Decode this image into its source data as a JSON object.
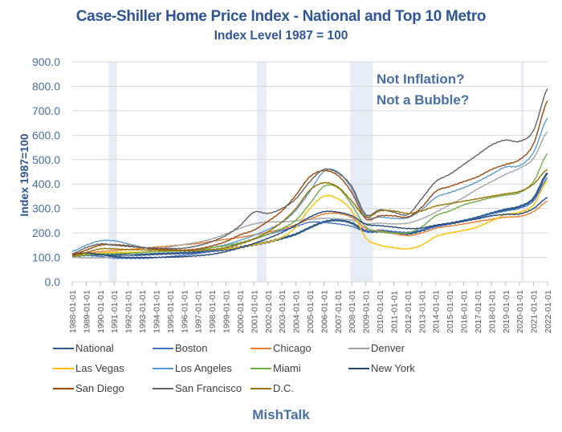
{
  "chart_data": {
    "type": "line",
    "title": "Case-Shiller Home Price Index - National and Top 10 Metro",
    "subtitle": "Index Level 1987 = 100",
    "xlabel": "",
    "ylabel": "Index 1987=100",
    "ylim": [
      0,
      900
    ],
    "yticks": [
      "0.0",
      "100.0",
      "200.0",
      "300.0",
      "400.0",
      "500.0",
      "600.0",
      "700.0",
      "800.0",
      "900.0"
    ],
    "grid": true,
    "legend_position": "bottom",
    "annotation": [
      "Not Inflation?",
      "Not a Bubble?"
    ],
    "source": "MishTalk",
    "x": [
      "1988-01-01",
      "1989-01-01",
      "1990-01-01",
      "1991-01-01",
      "1992-01-01",
      "1993-01-01",
      "1994-01-01",
      "1995-01-01",
      "1996-01-01",
      "1997-01-01",
      "1998-01-01",
      "1999-01-01",
      "2000-01-01",
      "2001-01-01",
      "2002-01-01",
      "2003-01-01",
      "2004-01-01",
      "2005-01-01",
      "2006-01-01",
      "2007-01-01",
      "2008-01-01",
      "2009-01-01",
      "2010-01-01",
      "2011-01-01",
      "2012-01-01",
      "2013-01-01",
      "2014-01-01",
      "2015-01-01",
      "2016-01-01",
      "2017-01-01",
      "2018-01-01",
      "2019-01-01",
      "2020-01-01",
      "2021-01-01",
      "2022-01-01"
    ],
    "recessions": [
      [
        1990.6,
        1991.2
      ],
      [
        2001.2,
        2001.9
      ],
      [
        2007.9,
        2009.5
      ],
      [
        2020.1,
        2020.3
      ]
    ],
    "series": [
      {
        "name": "National",
        "color": "#2E5C8A",
        "width": 2.6,
        "values": [
          105,
          110,
          112,
          110,
          110,
          111,
          114,
          116,
          118,
          121,
          126,
          133,
          142,
          152,
          163,
          178,
          195,
          222,
          245,
          252,
          240,
          208,
          206,
          200,
          197,
          210,
          228,
          238,
          250,
          264,
          281,
          296,
          308,
          342,
          445
        ]
      },
      {
        "name": "Boston",
        "color": "#4472C4",
        "width": 1.4,
        "values": [
          110,
          108,
          104,
          97,
          96,
          96,
          99,
          104,
          109,
          116,
          126,
          140,
          159,
          176,
          194,
          210,
          226,
          244,
          243,
          237,
          227,
          206,
          212,
          206,
          203,
          212,
          225,
          236,
          250,
          262,
          278,
          290,
          301,
          331,
          425
        ]
      },
      {
        "name": "Chicago",
        "color": "#ED7D31",
        "width": 1.4,
        "values": [
          108,
          117,
          124,
          128,
          132,
          137,
          142,
          147,
          152,
          157,
          166,
          174,
          182,
          192,
          203,
          216,
          234,
          257,
          277,
          280,
          263,
          218,
          208,
          198,
          189,
          200,
          219,
          228,
          237,
          247,
          256,
          264,
          268,
          287,
          330
        ]
      },
      {
        "name": "Denver",
        "color": "#A5A5A5",
        "width": 1.4,
        "values": [
          100,
          98,
          98,
          102,
          110,
          120,
          133,
          143,
          153,
          162,
          176,
          196,
          219,
          237,
          245,
          245,
          250,
          255,
          260,
          258,
          252,
          238,
          240,
          237,
          240,
          258,
          285,
          315,
          345,
          380,
          410,
          440,
          465,
          505,
          615
        ]
      },
      {
        "name": "Las Vegas",
        "color": "#FFC000",
        "width": 1.4,
        "values": [
          105,
          111,
          118,
          120,
          121,
          122,
          124,
          126,
          128,
          131,
          133,
          135,
          142,
          152,
          163,
          182,
          224,
          300,
          350,
          340,
          290,
          180,
          150,
          140,
          135,
          150,
          185,
          200,
          210,
          225,
          250,
          275,
          285,
          315,
          415
        ]
      },
      {
        "name": "Los Angeles",
        "color": "#5B9BD5",
        "width": 1.4,
        "values": [
          125,
          150,
          168,
          168,
          155,
          142,
          132,
          128,
          126,
          130,
          140,
          152,
          170,
          190,
          214,
          243,
          293,
          370,
          452,
          450,
          380,
          268,
          265,
          260,
          262,
          295,
          345,
          365,
          385,
          410,
          440,
          470,
          475,
          530,
          670
        ]
      },
      {
        "name": "Miami",
        "color": "#70AD47",
        "width": 1.4,
        "values": [
          105,
          110,
          114,
          115,
          117,
          120,
          123,
          125,
          128,
          133,
          140,
          148,
          160,
          175,
          195,
          218,
          252,
          320,
          390,
          385,
          315,
          225,
          205,
          200,
          200,
          225,
          270,
          290,
          315,
          330,
          345,
          355,
          365,
          410,
          525
        ]
      },
      {
        "name": "New York",
        "color": "#264478",
        "width": 1.4,
        "values": [
          115,
          118,
          112,
          103,
          100,
          100,
          100,
          101,
          103,
          107,
          113,
          124,
          139,
          157,
          178,
          202,
          232,
          265,
          287,
          285,
          270,
          236,
          230,
          224,
          218,
          220,
          232,
          240,
          248,
          258,
          270,
          276,
          278,
          300,
          345
        ]
      },
      {
        "name": "San Diego",
        "color": "#9E480E",
        "width": 1.4,
        "values": [
          110,
          130,
          150,
          152,
          148,
          140,
          135,
          132,
          130,
          135,
          147,
          165,
          192,
          212,
          248,
          290,
          355,
          430,
          455,
          435,
          365,
          258,
          270,
          270,
          265,
          305,
          370,
          390,
          410,
          430,
          460,
          480,
          500,
          565,
          740
        ]
      },
      {
        "name": "San Francisco",
        "color": "#636363",
        "width": 1.4,
        "values": [
          115,
          140,
          155,
          150,
          145,
          140,
          138,
          136,
          138,
          148,
          165,
          190,
          230,
          285,
          280,
          300,
          340,
          410,
          460,
          445,
          390,
          275,
          295,
          285,
          275,
          340,
          410,
          440,
          480,
          520,
          560,
          580,
          575,
          620,
          790
        ]
      },
      {
        "name": "D.C.",
        "color": "#997300",
        "width": 1.4,
        "values": [
          105,
          120,
          135,
          135,
          132,
          131,
          130,
          128,
          127,
          128,
          132,
          140,
          155,
          175,
          205,
          245,
          300,
          375,
          405,
          388,
          330,
          265,
          290,
          290,
          280,
          290,
          310,
          320,
          330,
          340,
          350,
          360,
          370,
          400,
          460
        ]
      }
    ]
  }
}
